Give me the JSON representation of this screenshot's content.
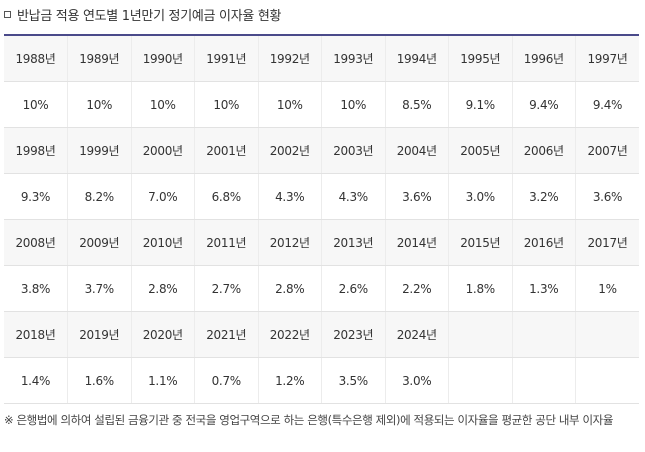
{
  "title": "반납금 적용 연도별 1년만기 정기예금 이자율 현황",
  "rows": [
    {
      "years": [
        "1988년",
        "1989년",
        "1990년",
        "1991년",
        "1992년",
        "1993년",
        "1994년",
        "1995년",
        "1996년",
        "1997년"
      ],
      "rates": [
        "10%",
        "10%",
        "10%",
        "10%",
        "10%",
        "10%",
        "8.5%",
        "9.1%",
        "9.4%",
        "9.4%"
      ]
    },
    {
      "years": [
        "1998년",
        "1999년",
        "2000년",
        "2001년",
        "2002년",
        "2003년",
        "2004년",
        "2005년",
        "2006년",
        "2007년"
      ],
      "rates": [
        "9.3%",
        "8.2%",
        "7.0%",
        "6.8%",
        "4.3%",
        "4.3%",
        "3.6%",
        "3.0%",
        "3.2%",
        "3.6%"
      ]
    },
    {
      "years": [
        "2008년",
        "2009년",
        "2010년",
        "2011년",
        "2012년",
        "2013년",
        "2014년",
        "2015년",
        "2016년",
        "2017년"
      ],
      "rates": [
        "3.8%",
        "3.7%",
        "2.8%",
        "2.7%",
        "2.8%",
        "2.6%",
        "2.2%",
        "1.8%",
        "1.3%",
        "1%"
      ]
    },
    {
      "years": [
        "2018년",
        "2019년",
        "2020년",
        "2021년",
        "2022년",
        "2023년",
        "2024년",
        "",
        "",
        ""
      ],
      "rates": [
        "1.4%",
        "1.6%",
        "1.1%",
        "0.7%",
        "1.2%",
        "3.5%",
        "3.0%",
        "",
        "",
        ""
      ]
    }
  ],
  "note": "※ 은행법에 의하여 설립된 금융기관 중 전국을 영업구역으로 하는 은행(특수은행 제외)에 적용되는 이자율을 평균한 공단 내부 이자율"
}
